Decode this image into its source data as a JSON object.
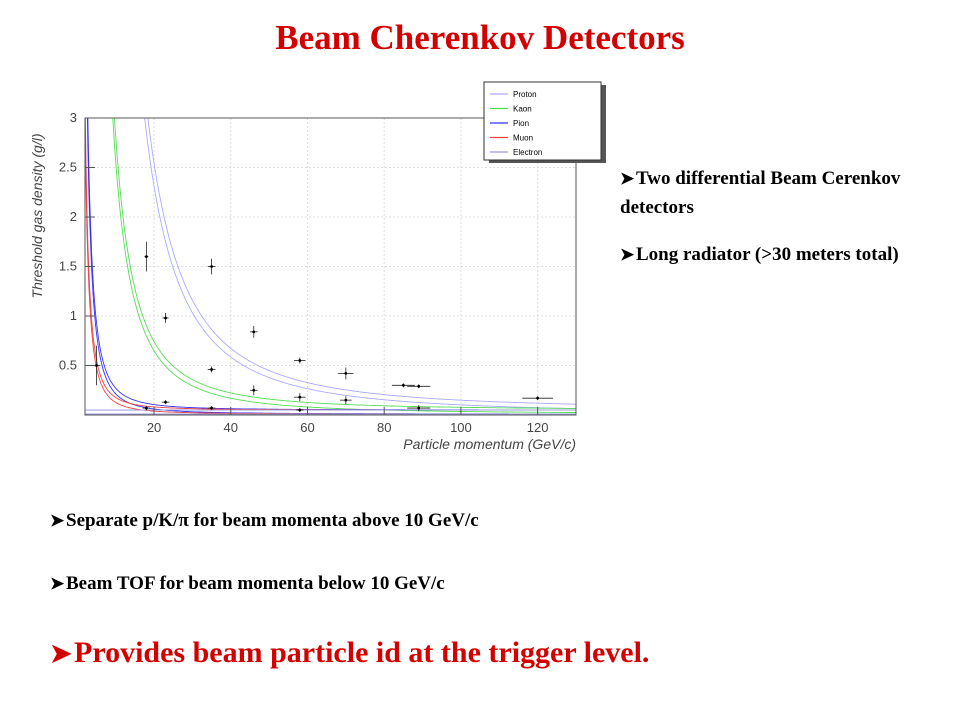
{
  "slide": {
    "title": "Beam Cherenkov  Detectors",
    "bullets_right": [
      "Two differential Beam Cerenkov detectors",
      "Long radiator (>30 meters total)"
    ],
    "bullets_bottom": [
      "Separate p/K/π for beam momenta above 10 GeV/c",
      "Beam TOF for beam momenta below 10 GeV/c"
    ],
    "bullet_highlight": "Provides beam particle id at the trigger level.",
    "bullet_icon": "arrow-bullet-icon",
    "colors": {
      "title": "#d40000",
      "highlight": "#d40000"
    }
  },
  "chart_data": {
    "type": "line",
    "xlabel": "Particle momentum (GeV/c)",
    "ylabel": "Threshold gas density (g/l)",
    "xlim": [
      2,
      130
    ],
    "ylim": [
      0,
      3
    ],
    "xticks": [
      20,
      40,
      60,
      80,
      100,
      120
    ],
    "yticks": [
      0.5,
      1,
      1.5,
      2,
      2.5,
      3
    ],
    "ytick_labels": [
      "0.5",
      "1",
      "1.5",
      "2",
      "2.5",
      "3"
    ],
    "legend_position": "top-right",
    "series": [
      {
        "name": "Proton",
        "color": "#aaaaff",
        "mass": 0.938,
        "band": 0.04
      },
      {
        "name": "Kaon",
        "color": "#55dd55",
        "mass": 0.494,
        "band": 0.04
      },
      {
        "name": "Pion",
        "color": "#3333ff",
        "mass": 0.1396,
        "band": 0.04
      },
      {
        "name": "Muon",
        "color": "#ee4444",
        "mass": 0.1057,
        "band": 0.04
      },
      {
        "name": "Electron",
        "color": "#9999dd",
        "mass": 0.000511,
        "band": 0.04
      }
    ],
    "points": [
      {
        "x": 18,
        "y": 1.6,
        "xerr": 0.5,
        "yerr": 0.15
      },
      {
        "x": 23,
        "y": 0.98,
        "xerr": 0.8,
        "yerr": 0.05
      },
      {
        "x": 35,
        "y": 1.5,
        "xerr": 1,
        "yerr": 0.08
      },
      {
        "x": 35,
        "y": 0.46,
        "xerr": 1,
        "yerr": 0.03
      },
      {
        "x": 46,
        "y": 0.84,
        "xerr": 1,
        "yerr": 0.06
      },
      {
        "x": 46,
        "y": 0.25,
        "xerr": 1,
        "yerr": 0.05
      },
      {
        "x": 58,
        "y": 0.55,
        "xerr": 1.5,
        "yerr": 0.03
      },
      {
        "x": 58,
        "y": 0.18,
        "xerr": 1.5,
        "yerr": 0.04
      },
      {
        "x": 70,
        "y": 0.42,
        "xerr": 2,
        "yerr": 0.06
      },
      {
        "x": 70,
        "y": 0.15,
        "xerr": 1.5,
        "yerr": 0.04
      },
      {
        "x": 85,
        "y": 0.3,
        "xerr": 3,
        "yerr": 0.02
      },
      {
        "x": 89,
        "y": 0.29,
        "xerr": 3,
        "yerr": 0.02
      },
      {
        "x": 89,
        "y": 0.07,
        "xerr": 3,
        "yerr": 0.03
      },
      {
        "x": 120,
        "y": 0.17,
        "xerr": 4,
        "yerr": 0.02
      },
      {
        "x": 5,
        "y": 0.5,
        "xerr": 1,
        "yerr": 0.2
      },
      {
        "x": 18,
        "y": 0.07,
        "xerr": 1,
        "yerr": 0.02
      },
      {
        "x": 23,
        "y": 0.13,
        "xerr": 1,
        "yerr": 0.02
      },
      {
        "x": 35,
        "y": 0.07,
        "xerr": 1,
        "yerr": 0.02
      },
      {
        "x": 58,
        "y": 0.05,
        "xerr": 1,
        "yerr": 0.02
      }
    ]
  }
}
